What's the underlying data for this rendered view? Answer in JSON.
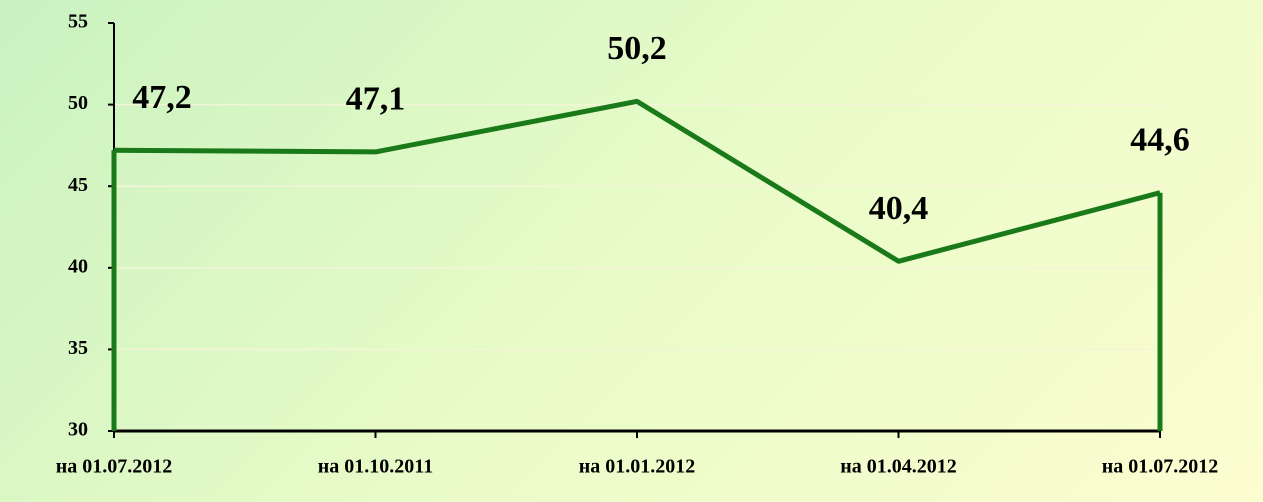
{
  "chart_data": {
    "type": "area",
    "categories": [
      "на 01.07.2012",
      "на 01.10.2011",
      "на 01.01.2012",
      "на 01.04.2012",
      "на 01.07.2012"
    ],
    "values": [
      47.2,
      47.1,
      50.2,
      40.4,
      44.6
    ],
    "value_labels": [
      "47,2",
      "47,1",
      "50,2",
      "40,4",
      "44,6"
    ],
    "color": "#1a7a1a",
    "ylim": [
      30,
      55
    ],
    "yticks": [
      30,
      35,
      40,
      45,
      50,
      55
    ],
    "grid": true
  }
}
